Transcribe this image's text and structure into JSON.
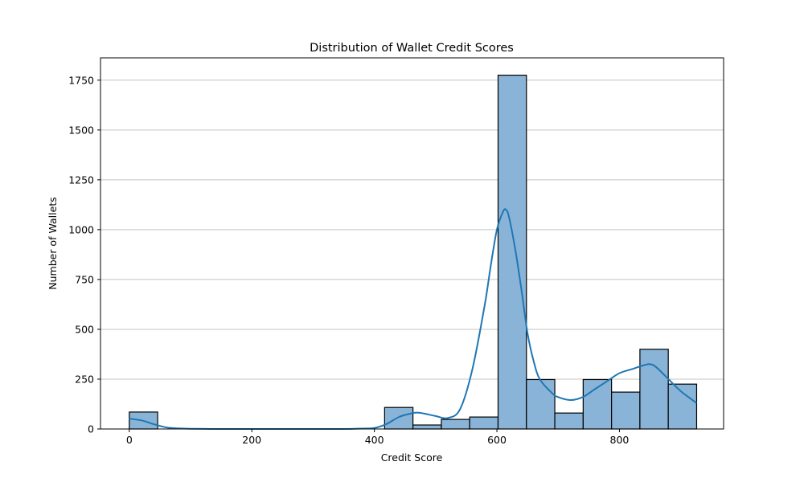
{
  "chart_data": {
    "type": "bar",
    "subtype": "histogram-with-kde",
    "title": "Distribution of Wallet Credit Scores",
    "xlabel": "Credit Score",
    "ylabel": "Number of Wallets",
    "xlim": [
      -47,
      970
    ],
    "ylim": [
      0,
      1862
    ],
    "xticks": [
      0,
      200,
      400,
      600,
      800
    ],
    "yticks": [
      0,
      250,
      500,
      750,
      1000,
      1250,
      1500,
      1750
    ],
    "grid": "y",
    "bin_edges": [
      0,
      46.3,
      92.6,
      138.9,
      185.2,
      231.5,
      277.8,
      324.1,
      370.4,
      416.7,
      463.0,
      509.3,
      555.6,
      601.9,
      648.2,
      694.5,
      740.8,
      787.1,
      833.4,
      879.7,
      926.0
    ],
    "values": [
      85,
      0,
      0,
      0,
      0,
      0,
      0,
      0,
      0,
      108,
      20,
      48,
      60,
      1775,
      248,
      80,
      248,
      185,
      400,
      225
    ],
    "kde": {
      "x": [
        0,
        20,
        40,
        60,
        80,
        100,
        150,
        200,
        250,
        300,
        350,
        380,
        400,
        420,
        440,
        460,
        470,
        480,
        500,
        520,
        540,
        560,
        580,
        590,
        600,
        610,
        615,
        620,
        630,
        640,
        650,
        660,
        670,
        690,
        700,
        720,
        740,
        760,
        780,
        800,
        820,
        840,
        850,
        860,
        880,
        900,
        926
      ],
      "y": [
        52,
        43,
        24,
        8,
        3,
        1,
        0,
        0,
        0,
        0,
        0,
        2,
        5,
        25,
        60,
        78,
        82,
        78,
        65,
        55,
        100,
        300,
        620,
        820,
        1000,
        1090,
        1100,
        1060,
        900,
        700,
        480,
        340,
        250,
        180,
        160,
        145,
        160,
        200,
        240,
        280,
        300,
        320,
        325,
        310,
        250,
        190,
        130
      ]
    },
    "colors": {
      "bar_fill": "#89b4d7",
      "bar_edge": "#000000",
      "kde_line": "#1f77b4",
      "grid": "#c4c4c4"
    }
  }
}
